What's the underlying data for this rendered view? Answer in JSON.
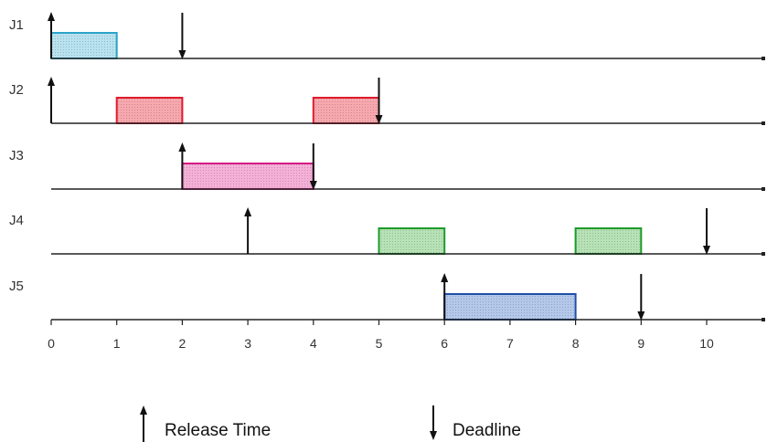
{
  "colors": {
    "axis": "#222222",
    "J1": {
      "stroke": "#2aa3c9",
      "fill": "#b8e2ef"
    },
    "J2": {
      "stroke": "#e01b2b",
      "fill": "#f7a8ae"
    },
    "J3": {
      "stroke": "#d81b86",
      "fill": "#f5b0d8"
    },
    "J4": {
      "stroke": "#1e9a2a",
      "fill": "#b6e2b6"
    },
    "J5": {
      "stroke": "#1f4ea8",
      "fill": "#b3c8ea"
    }
  },
  "axis": {
    "ticks": [
      0,
      1,
      2,
      3,
      4,
      5,
      6,
      7,
      8,
      9,
      10
    ],
    "tick_labels": [
      "0",
      "1",
      "2",
      "3",
      "4",
      "5",
      "6",
      "7",
      "8",
      "9",
      "10"
    ]
  },
  "jobs": [
    {
      "label": "J1",
      "release": 0,
      "deadline": 2,
      "executions": [
        [
          0,
          1
        ]
      ]
    },
    {
      "label": "J2",
      "release": 0,
      "deadline": 5,
      "executions": [
        [
          1,
          2
        ],
        [
          4,
          5
        ]
      ]
    },
    {
      "label": "J3",
      "release": 2,
      "deadline": 4,
      "executions": [
        [
          2,
          4
        ]
      ]
    },
    {
      "label": "J4",
      "release": 3,
      "deadline": 10,
      "executions": [
        [
          5,
          6
        ],
        [
          8,
          9
        ]
      ]
    },
    {
      "label": "J5",
      "release": 6,
      "deadline": 9,
      "executions": [
        [
          6,
          8
        ]
      ]
    }
  ],
  "legend": {
    "release_label": "Release Time",
    "release_icon": "up-arrow-icon",
    "deadline_label": "Deadline",
    "deadline_icon": "down-arrow-icon"
  }
}
